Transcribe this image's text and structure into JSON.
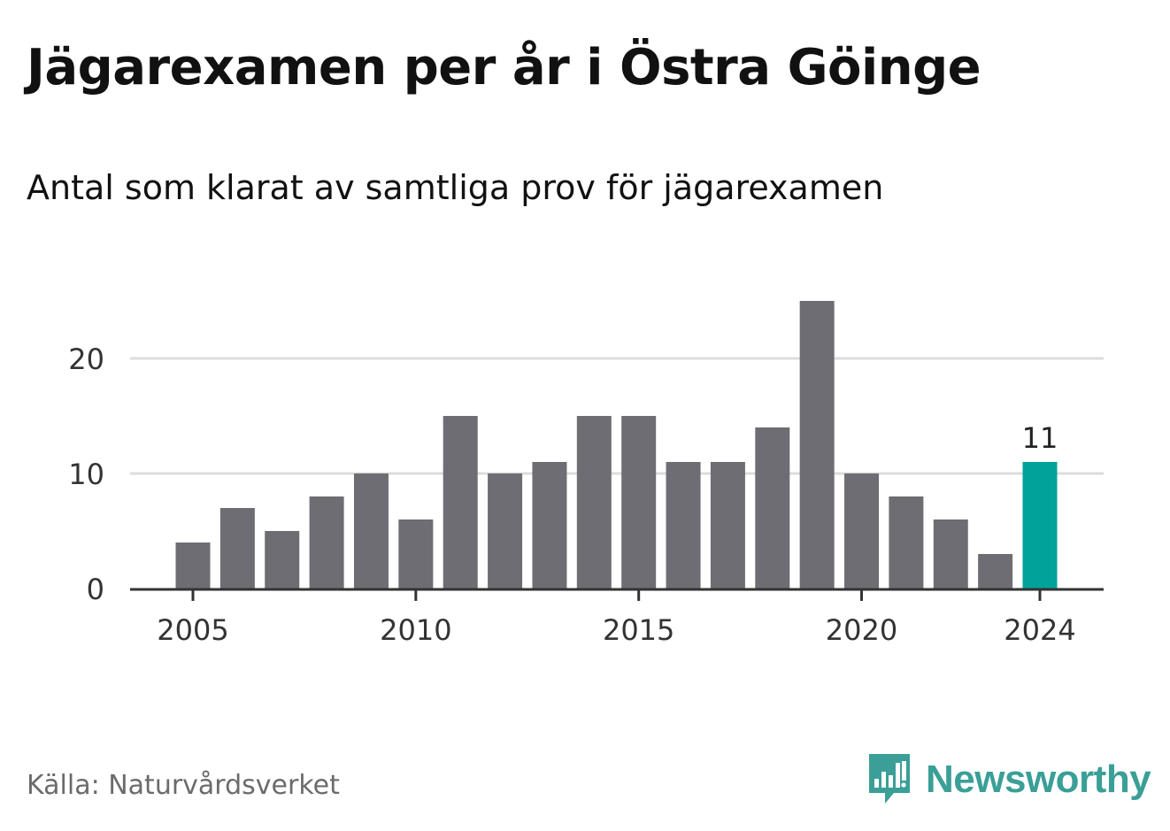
{
  "header": {
    "title": "Jägarexamen per år i Östra Göinge",
    "subtitle": "Antal som klarat av samtliga prov för jägarexamen"
  },
  "footer": {
    "source": "Källa: Naturvårdsverket",
    "brand": "Newsworthy",
    "brand_icon": "bar-chart-speech-bubble-icon"
  },
  "colors": {
    "bar": "#6e6d73",
    "highlight": "#00a29a",
    "grid": "#dcdcdc",
    "axis": "#333333",
    "brand": "#3a9f97"
  },
  "chart_data": {
    "type": "bar",
    "x": [
      2005,
      2006,
      2007,
      2008,
      2009,
      2010,
      2011,
      2012,
      2013,
      2014,
      2015,
      2016,
      2017,
      2018,
      2019,
      2020,
      2021,
      2022,
      2023,
      2024
    ],
    "values": [
      4,
      7,
      5,
      8,
      10,
      6,
      15,
      10,
      11,
      15,
      15,
      11,
      11,
      14,
      25,
      10,
      8,
      6,
      3,
      11
    ],
    "highlight_x": 2024,
    "highlight_label": "11",
    "x_ticks": [
      2005,
      2010,
      2015,
      2020,
      2024
    ],
    "x_tick_labels": [
      "2005",
      "2010",
      "2015",
      "2020",
      "2024"
    ],
    "y_ticks": [
      0,
      10,
      20
    ],
    "y_tick_labels": [
      "0",
      "10",
      "20"
    ],
    "ylim": [
      0,
      25
    ],
    "grid": true,
    "xlabel": "",
    "ylabel": ""
  }
}
